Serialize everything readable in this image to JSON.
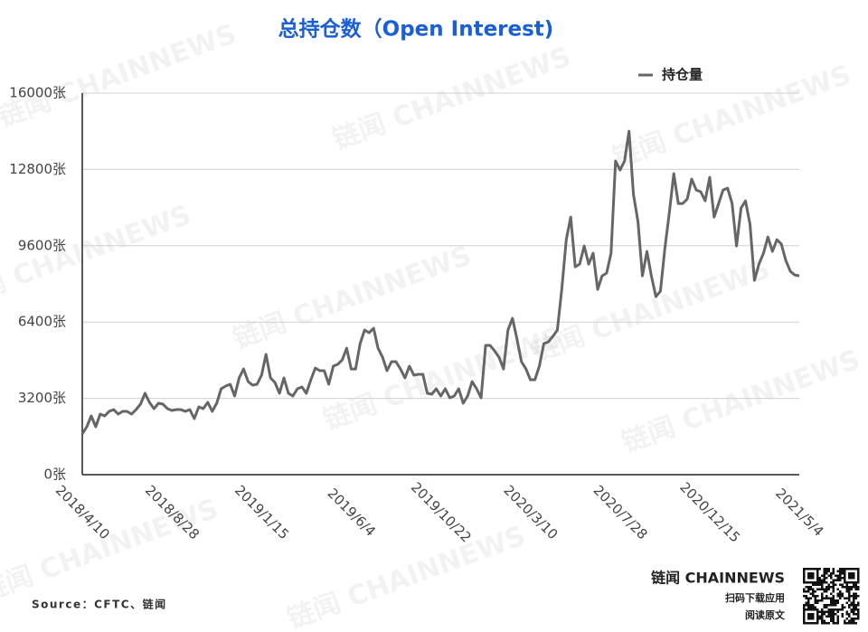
{
  "chart_data": {
    "type": "line",
    "title": "总持仓数（Open Interest)",
    "categories": [
      "2018/4/10",
      null,
      null,
      null,
      null,
      null,
      null,
      null,
      null,
      null,
      null,
      null,
      null,
      null,
      null,
      null,
      null,
      null,
      null,
      null,
      "2018/8/28",
      null,
      null,
      null,
      null,
      null,
      null,
      null,
      null,
      null,
      null,
      null,
      null,
      null,
      null,
      null,
      null,
      null,
      null,
      null,
      "2019/1/15",
      null,
      null,
      null,
      null,
      null,
      null,
      null,
      null,
      null,
      null,
      null,
      null,
      null,
      null,
      null,
      null,
      null,
      null,
      null,
      "2019/6/4",
      null,
      null,
      null,
      null,
      null,
      null,
      null,
      null,
      null,
      null,
      null,
      null,
      null,
      null,
      null,
      null,
      null,
      null,
      null,
      "2019/10/22",
      null,
      null,
      null,
      null,
      null,
      null,
      null,
      null,
      null,
      null,
      null,
      null,
      null,
      null,
      null,
      null,
      null,
      null,
      null,
      "2020/3/10",
      null,
      null,
      null,
      null,
      null,
      null,
      null,
      null,
      null,
      null,
      null,
      null,
      null,
      null,
      null,
      null,
      null,
      null,
      null,
      "2020/7/28",
      null,
      null,
      null,
      null,
      null,
      null,
      null,
      null,
      null,
      null,
      null,
      null,
      null,
      null,
      null,
      null,
      null,
      null,
      null,
      "2020/12/15",
      null,
      null,
      null,
      null,
      null,
      null,
      null,
      null,
      null,
      null,
      null,
      null,
      null,
      null,
      null,
      null,
      null,
      null,
      null,
      "2021/5/4"
    ],
    "series": [
      {
        "name": "持仓量",
        "color": "#666666",
        "values": [
          1706,
          2009,
          2464,
          2009,
          2539,
          2464,
          2653,
          2729,
          2539,
          2653,
          2653,
          2539,
          2729,
          2956,
          3411,
          3032,
          2767,
          2994,
          2956,
          2767,
          2691,
          2729,
          2729,
          2653,
          2729,
          2350,
          2843,
          2767,
          3032,
          2653,
          2994,
          3601,
          3714,
          3790,
          3297,
          4055,
          4434,
          3904,
          3752,
          3790,
          4169,
          5041,
          4055,
          3866,
          3411,
          4055,
          3411,
          3297,
          3601,
          3676,
          3411,
          3980,
          4472,
          4359,
          4359,
          3790,
          4548,
          4624,
          4813,
          5306,
          4434,
          4434,
          5496,
          6064,
          5951,
          6140,
          5306,
          4927,
          4359,
          4738,
          4738,
          4434,
          4055,
          4548,
          4169,
          4207,
          4207,
          3411,
          3373,
          3601,
          3297,
          3601,
          3221,
          3297,
          3601,
          2994,
          3297,
          3904,
          3601,
          3221,
          5420,
          5420,
          5192,
          4927,
          4434,
          6064,
          6557,
          5685,
          4738,
          4434,
          3980,
          3980,
          4548,
          5496,
          5571,
          5799,
          6064,
          7770,
          9854,
          10802,
          8717,
          8831,
          9589,
          8831,
          9286,
          7770,
          8339,
          8452,
          9286,
          13151,
          12772,
          13151,
          14402,
          11749,
          10612,
          8339,
          9361,
          8339,
          7466,
          7694,
          9475,
          10991,
          12620,
          11370,
          11370,
          11560,
          12393,
          11939,
          11863,
          11484,
          12469,
          10802,
          11370,
          11939,
          12014,
          11370,
          9589,
          11181,
          11484,
          10498,
          8149,
          8831,
          9286,
          9968,
          9361,
          9854,
          9665,
          8982,
          8528,
          8376,
          8339
        ]
      }
    ],
    "ylim": [
      0,
      16000
    ],
    "yticks": [
      {
        "value": 0,
        "label": "0张"
      },
      {
        "value": 3200,
        "label": "3200张"
      },
      {
        "value": 6400,
        "label": "6400张"
      },
      {
        "value": 9600,
        "label": "9600张"
      },
      {
        "value": 12800,
        "label": "12800张"
      },
      {
        "value": 16000,
        "label": "16000张"
      }
    ],
    "grid": true,
    "legend": "top-right"
  },
  "footer": {
    "source": "Source：CFTC、链闻",
    "brand": "链闻 CHAINNEWS",
    "download": "扫码下载应用",
    "read": "阅读原文"
  },
  "watermark": "链闻 CHAINNEWS"
}
